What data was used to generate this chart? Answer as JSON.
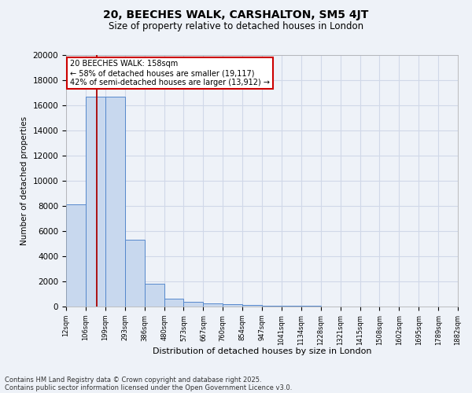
{
  "title_line1": "20, BEECHES WALK, CARSHALTON, SM5 4JT",
  "title_line2": "Size of property relative to detached houses in London",
  "xlabel": "Distribution of detached houses by size in London",
  "ylabel": "Number of detached properties",
  "bin_edges": [
    12,
    106,
    199,
    293,
    386,
    480,
    573,
    667,
    760,
    854,
    947,
    1041,
    1134,
    1228,
    1321,
    1415,
    1508,
    1602,
    1695,
    1789,
    1882
  ],
  "bar_heights": [
    8100,
    16700,
    16700,
    5300,
    1800,
    650,
    350,
    250,
    200,
    120,
    80,
    60,
    40,
    30,
    20,
    15,
    10,
    8,
    5,
    3
  ],
  "bar_color": "#c8d8ee",
  "bar_edge_color": "#5588cc",
  "property_size": 158,
  "annotation_text": "20 BEECHES WALK: 158sqm\n← 58% of detached houses are smaller (19,117)\n42% of semi-detached houses are larger (13,912) →",
  "annotation_box_color": "#cc0000",
  "vline_color": "#aa0000",
  "ylim": [
    0,
    20000
  ],
  "yticks": [
    0,
    2000,
    4000,
    6000,
    8000,
    10000,
    12000,
    14000,
    16000,
    18000,
    20000
  ],
  "footer_line1": "Contains HM Land Registry data © Crown copyright and database right 2025.",
  "footer_line2": "Contains public sector information licensed under the Open Government Licence v3.0.",
  "background_color": "#eef2f8",
  "grid_color": "#d0d8e8",
  "plot_bg_color": "#eef2f8"
}
